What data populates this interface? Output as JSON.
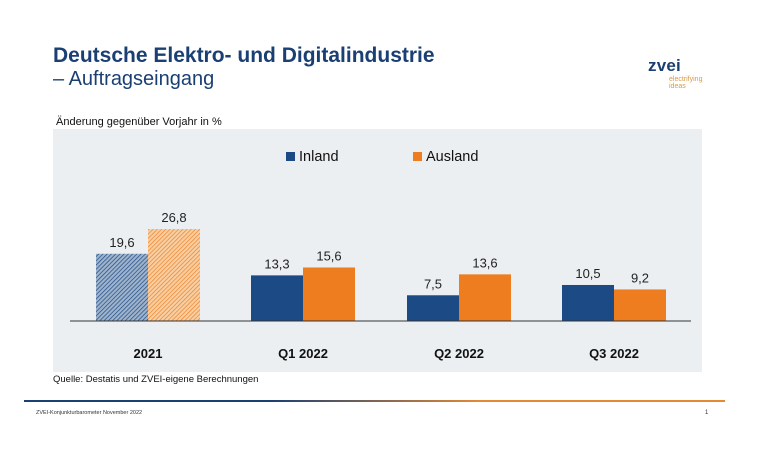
{
  "header": {
    "title": "Deutsche Elektro- und Digitalindustrie",
    "subtitle": "– Auftragseingang"
  },
  "logo": {
    "word": "zvei",
    "tagline_line1": "electrifying",
    "tagline_line2": "ideas"
  },
  "colors": {
    "brand_blue": "#1a3f73",
    "inland": "#1b4a84",
    "ausland": "#ee7d1f",
    "panel_bg": "#eceff1"
  },
  "chart_data": {
    "type": "bar",
    "title": "",
    "ylabel": "Änderung gegenüber Vorjahr in %",
    "xlabel": "",
    "categories": [
      "2021",
      "Q1 2022",
      "Q2 2022",
      "Q3 2022"
    ],
    "series": [
      {
        "name": "Inland",
        "color": "#1b4a84",
        "values": [
          19.6,
          13.3,
          7.5,
          10.5
        ],
        "labels": [
          "19,6",
          "13,3",
          "7,5",
          "10,5"
        ]
      },
      {
        "name": "Ausland",
        "color": "#ee7d1f",
        "values": [
          26.8,
          15.6,
          13.6,
          9.2
        ],
        "labels": [
          "26,8",
          "15,6",
          "13,6",
          "9,2"
        ]
      }
    ],
    "hatched_categories": [
      "2021"
    ],
    "ylim": [
      0,
      30
    ],
    "grid": false,
    "legend_position": "top-center"
  },
  "footer": {
    "source": "Quelle: Destatis und ZVEI-eigene Berechnungen",
    "note": "ZVEI-Konjunkturbarometer November 2022",
    "page": "1"
  }
}
